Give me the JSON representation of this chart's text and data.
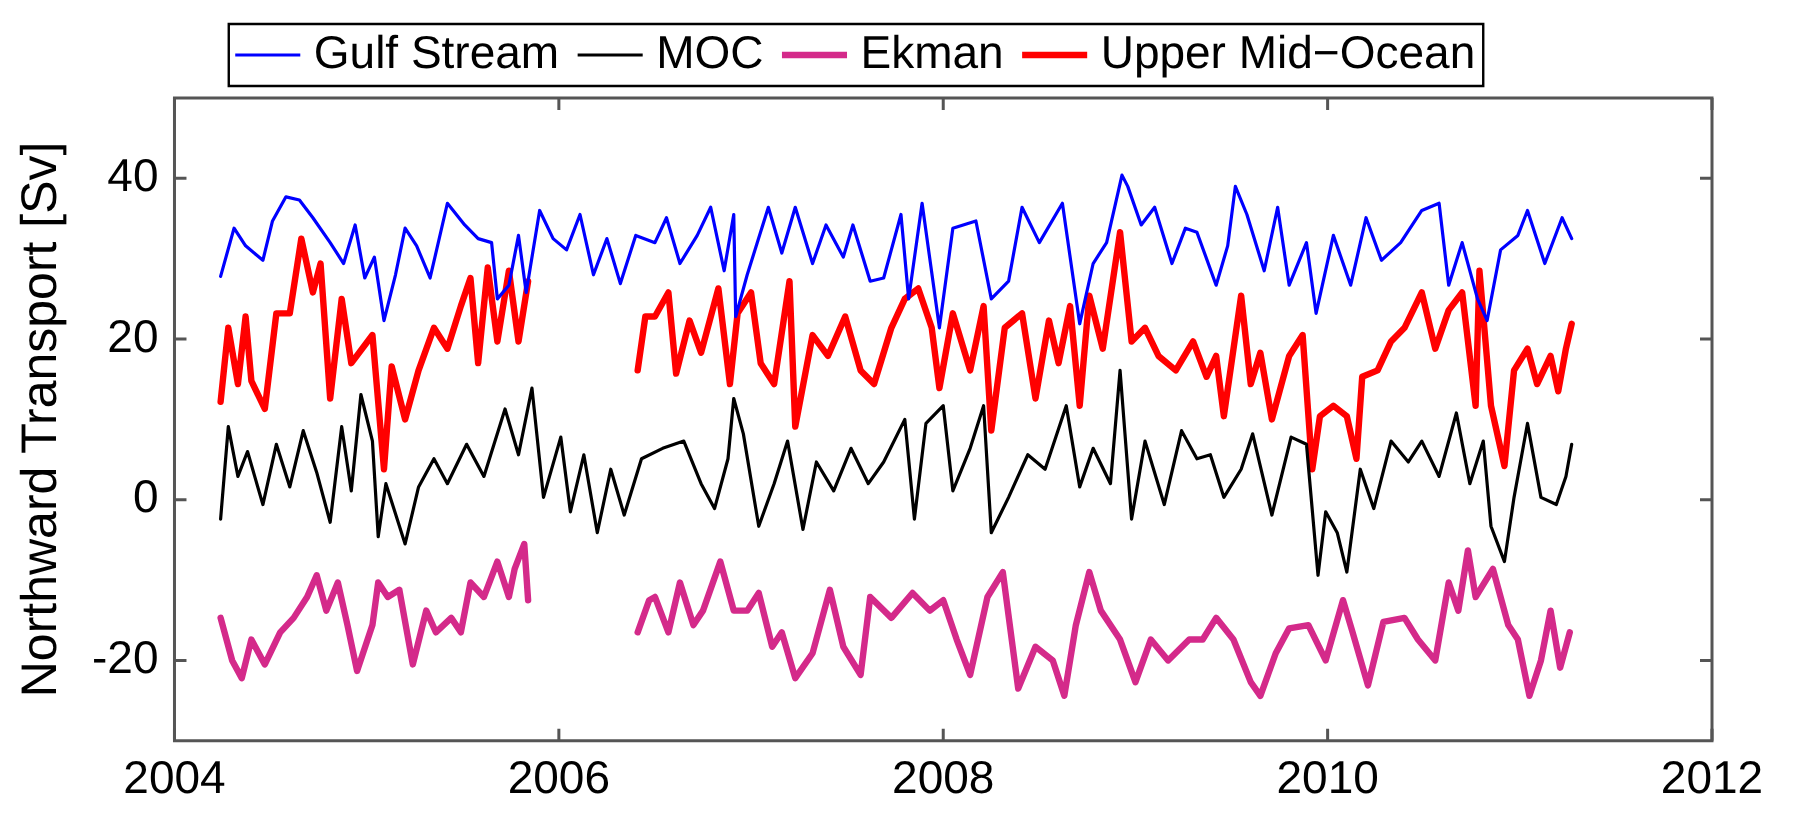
{
  "chart_data": {
    "type": "line",
    "ylabel": "Northward Transport [Sv]",
    "xlim": [
      2004,
      2012
    ],
    "xticks": [
      2004,
      2006,
      2008,
      2010,
      2012
    ],
    "ylim": [
      -30,
      50
    ],
    "yticks": [
      -20,
      0,
      20,
      40
    ],
    "grid": false,
    "legend": "top",
    "series": [
      {
        "name": "Gulf Stream",
        "color": "#0000ff",
        "x": [
          2004.24,
          2004.31,
          2004.37,
          2004.46,
          2004.51,
          2004.58,
          2004.65,
          2004.72,
          2004.81,
          2004.88,
          2004.94,
          2004.99,
          2005.04,
          2005.09,
          2005.15,
          2005.2,
          2005.26,
          2005.33,
          2005.42,
          2005.51,
          2005.58,
          2005.65,
          2005.68,
          2005.74,
          2005.79,
          2005.83,
          2005.9,
          2005.97,
          2006.04,
          2006.11,
          2006.18,
          2006.25,
          2006.32,
          2006.4,
          2006.5,
          2006.56,
          2006.63,
          2006.72,
          2006.79,
          2006.86,
          2006.91,
          2006.92,
          2006.98,
          2007.09,
          2007.16,
          2007.23,
          2007.32,
          2007.39,
          2007.48,
          2007.53,
          2007.62,
          2007.69,
          2007.78,
          2007.82,
          2007.89,
          2007.98,
          2008.05,
          2008.17,
          2008.25,
          2008.34,
          2008.41,
          2008.5,
          2008.62,
          2008.71,
          2008.78,
          2008.85,
          2008.93,
          2008.96,
          2009.03,
          2009.1,
          2009.19,
          2009.26,
          2009.32,
          2009.42,
          2009.48,
          2009.52,
          2009.58,
          2009.67,
          2009.74,
          2009.8,
          2009.89,
          2009.94,
          2010.03,
          2010.12,
          2010.2,
          2010.28,
          2010.38,
          2010.49,
          2010.58,
          2010.63,
          2010.7,
          2010.78,
          2010.83,
          2010.9,
          2010.99,
          2011.04,
          2011.13,
          2011.22,
          2011.27
        ],
        "values": [
          27.8,
          33.8,
          31.6,
          29.8,
          34.7,
          37.7,
          37.3,
          35.1,
          32,
          29.4,
          34.2,
          27.6,
          30.2,
          22.3,
          28,
          33.8,
          31.6,
          27.6,
          36.9,
          34.2,
          32.5,
          32,
          25,
          26.7,
          32.9,
          25.8,
          36,
          32.5,
          31.1,
          35.5,
          28,
          32.5,
          26.9,
          32.9,
          32,
          35.1,
          29.4,
          32.9,
          36.4,
          28.5,
          35.5,
          22.8,
          28,
          36.4,
          30.7,
          36.4,
          29.4,
          34.2,
          30.2,
          34.2,
          27.2,
          27.6,
          35.5,
          25,
          36.9,
          21.4,
          33.8,
          34.7,
          25,
          27.2,
          36.4,
          32,
          36.9,
          21.9,
          29.4,
          32,
          40.4,
          39,
          34.2,
          36.4,
          29.4,
          33.8,
          33.3,
          26.7,
          31.6,
          39,
          35.5,
          28.5,
          36.4,
          26.7,
          32,
          23.2,
          32.9,
          26.7,
          35.1,
          29.8,
          32,
          36,
          36.9,
          26.7,
          32,
          25,
          22.3,
          31.1,
          32.9,
          36,
          29.4,
          35.1,
          32.5
        ]
      },
      {
        "name": "MOC",
        "color": "#000000",
        "x": [
          2004.24,
          2004.28,
          2004.33,
          2004.38,
          2004.46,
          2004.53,
          2004.6,
          2004.67,
          2004.74,
          2004.81,
          2004.87,
          2004.92,
          2004.97,
          2005.03,
          2005.06,
          2005.1,
          2005.2,
          2005.27,
          2005.35,
          2005.42,
          2005.52,
          2005.61,
          2005.72,
          2005.79,
          2005.86,
          2005.92,
          2006.01,
          2006.06,
          2006.13,
          2006.2,
          2006.27,
          2006.34,
          2006.43,
          2006.54,
          2006.65,
          2006.74,
          2006.81,
          2006.88,
          2006.91,
          2006.96,
          2007.04,
          2007.12,
          2007.19,
          2007.27,
          2007.34,
          2007.43,
          2007.52,
          2007.61,
          2007.69,
          2007.8,
          2007.85,
          2007.91,
          2008.0,
          2008.05,
          2008.14,
          2008.21,
          2008.25,
          2008.34,
          2008.44,
          2008.53,
          2008.64,
          2008.71,
          2008.78,
          2008.87,
          2008.92,
          2008.98,
          2009.05,
          2009.15,
          2009.24,
          2009.32,
          2009.39,
          2009.46,
          2009.55,
          2009.61,
          2009.71,
          2009.81,
          2009.89,
          2009.95,
          2009.99,
          2010.05,
          2010.1,
          2010.17,
          2010.24,
          2010.33,
          2010.42,
          2010.49,
          2010.58,
          2010.67,
          2010.74,
          2010.81,
          2010.85,
          2010.92,
          2010.97,
          2011.04,
          2011.11,
          2011.19,
          2011.24,
          2011.27
        ],
        "values": [
          -2.4,
          9.1,
          2.9,
          6,
          -0.6,
          6.9,
          1.6,
          8.6,
          3.4,
          -2.8,
          9.1,
          1.1,
          13.1,
          7.3,
          -4.6,
          2,
          -5.5,
          1.6,
          5.1,
          2,
          6.9,
          2.9,
          11.3,
          5.6,
          13.9,
          0.3,
          7.8,
          -1.5,
          5.6,
          -4.1,
          3.8,
          -1.9,
          5.1,
          6.4,
          7.3,
          2,
          -1.1,
          5.1,
          12.6,
          8.2,
          -3.3,
          2,
          7.3,
          -3.7,
          4.7,
          1.1,
          6.4,
          2,
          4.7,
          10,
          -2.4,
          9.5,
          11.7,
          1.1,
          6.4,
          11.7,
          -4.1,
          0.3,
          5.6,
          3.8,
          11.7,
          1.6,
          6.4,
          2,
          16.1,
          -2.4,
          7.3,
          -0.6,
          8.6,
          5.1,
          5.6,
          0.3,
          3.8,
          8.2,
          -1.9,
          7.8,
          6.9,
          -9.4,
          -1.5,
          -4.1,
          -9,
          3.8,
          -1.1,
          7.3,
          4.7,
          7.3,
          2.9,
          10.8,
          2,
          7.3,
          -3.3,
          -7.7,
          0.3,
          9.5,
          0.3,
          -0.6,
          2.9,
          6.9
        ]
      },
      {
        "name": "Ekman",
        "color": "#d42a8a",
        "x": [
          2004.24,
          2004.3,
          2004.35,
          2004.4,
          2004.47,
          2004.55,
          2004.62,
          2004.69,
          2004.74,
          2004.79,
          2004.85,
          2004.9,
          2004.95,
          2005.03,
          2005.06,
          2005.11,
          2005.17,
          2005.24,
          2005.31,
          2005.36,
          2005.44,
          2005.49,
          2005.54,
          2005.61,
          2005.68,
          2005.74,
          2005.77,
          2005.82,
          2005.84,
          2006.1,
          2006.41,
          2006.47,
          2006.5,
          2006.57,
          2006.63,
          2006.7,
          2006.75,
          2006.84,
          2006.91,
          2006.98,
          2007.04,
          2007.11,
          2007.16,
          2007.23,
          2007.32,
          2007.41,
          2007.48,
          2007.57,
          2007.62,
          2007.73,
          2007.84,
          2007.93,
          2008.0,
          2008.07,
          2008.14,
          2008.23,
          2008.31,
          2008.39,
          2008.48,
          2008.57,
          2008.63,
          2008.69,
          2008.76,
          2008.82,
          2008.92,
          2009.0,
          2009.08,
          2009.17,
          2009.28,
          2009.35,
          2009.42,
          2009.51,
          2009.6,
          2009.65,
          2009.73,
          2009.8,
          2009.9,
          2009.99,
          2010.08,
          2010.13,
          2010.21,
          2010.29,
          2010.4,
          2010.47,
          2010.56,
          2010.63,
          2010.68,
          2010.73,
          2010.77,
          2010.86,
          2010.94,
          2010.99,
          2011.05,
          2011.11,
          2011.16,
          2011.21,
          2011.26
        ],
        "values": [
          -14.7,
          -20,
          -22.2,
          -17.4,
          -20.5,
          -16.5,
          -14.7,
          -12.1,
          -9.4,
          -13.8,
          -10.3,
          -15.6,
          -21.3,
          -15.6,
          -10.3,
          -12.1,
          -11.2,
          -20.5,
          -13.8,
          -16.5,
          -14.7,
          -16.5,
          -10.3,
          -12.1,
          -7.7,
          -12.1,
          -8.6,
          -5.5,
          -12.5,
          null,
          -16.5,
          -12.5,
          -12.1,
          -16.5,
          -10.3,
          -15.6,
          -13.8,
          -7.7,
          -13.8,
          -13.8,
          -11.6,
          -18.3,
          -16.5,
          -22.2,
          -19.1,
          -11.2,
          -18.3,
          -21.8,
          -12.1,
          -14.7,
          -11.6,
          -13.8,
          -12.5,
          -17.4,
          -21.8,
          -12.1,
          -9,
          -23.5,
          -18.3,
          -20,
          -24.4,
          -15.6,
          -9,
          -13.8,
          -17.4,
          -22.7,
          -17.4,
          -20,
          -17.4,
          -17.4,
          -14.7,
          -17.4,
          -22.7,
          -24.4,
          -19.1,
          -16,
          -15.6,
          -20,
          -12.5,
          -16.5,
          -23.1,
          -15.2,
          -14.7,
          -17.4,
          -20,
          -10.3,
          -13.8,
          -6.3,
          -12.1,
          -8.6,
          -15.6,
          -17.4,
          -24.4,
          -20,
          -13.8,
          -20.9,
          -16.5
        ]
      },
      {
        "name": "Upper Mid−Ocean",
        "color": "#ff0000",
        "x": [
          2004.24,
          2004.28,
          2004.33,
          2004.37,
          2004.4,
          2004.47,
          2004.53,
          2004.6,
          2004.66,
          2004.72,
          2004.76,
          2004.81,
          2004.87,
          2004.92,
          2005.03,
          2005.09,
          2005.13,
          2005.2,
          2005.27,
          2005.35,
          2005.42,
          2005.49,
          2005.54,
          2005.58,
          2005.63,
          2005.68,
          2005.74,
          2005.79,
          2005.84,
          2006.1,
          2006.41,
          2006.45,
          2006.5,
          2006.57,
          2006.61,
          2006.68,
          2006.74,
          2006.83,
          2006.89,
          2006.93,
          2007.0,
          2007.05,
          2007.12,
          2007.2,
          2007.23,
          2007.32,
          2007.4,
          2007.49,
          2007.57,
          2007.64,
          2007.73,
          2007.8,
          2007.87,
          2007.94,
          2007.98,
          2008.05,
          2008.14,
          2008.21,
          2008.25,
          2008.32,
          2008.41,
          2008.48,
          2008.55,
          2008.6,
          2008.66,
          2008.71,
          2008.76,
          2008.83,
          2008.92,
          2008.98,
          2009.05,
          2009.12,
          2009.21,
          2009.3,
          2009.37,
          2009.42,
          2009.46,
          2009.55,
          2009.6,
          2009.65,
          2009.71,
          2009.8,
          2009.87,
          2009.92,
          2009.96,
          2010.03,
          2010.1,
          2010.15,
          2010.18,
          2010.26,
          2010.33,
          2010.4,
          2010.49,
          2010.56,
          2010.63,
          2010.7,
          2010.77,
          2010.79,
          2010.85,
          2010.92,
          2010.97,
          2011.04,
          2011.09,
          2011.16,
          2011.2,
          2011.24,
          2011.27
        ],
        "values": [
          12.2,
          21.4,
          14.4,
          22.8,
          14.8,
          11.3,
          23.2,
          23.2,
          32.5,
          25.8,
          29.4,
          12.6,
          25,
          17,
          20.5,
          3.8,
          16.6,
          10,
          16.1,
          21.4,
          18.8,
          24.1,
          27.6,
          17,
          28.9,
          19.7,
          28.5,
          19.7,
          27.2,
          null,
          16.1,
          22.8,
          22.8,
          25.8,
          15.7,
          22.3,
          18.3,
          26.3,
          14.4,
          23.2,
          25.8,
          17,
          14.4,
          27.2,
          9.1,
          20.5,
          17.9,
          22.8,
          16.1,
          14.4,
          21.4,
          25,
          26.3,
          21.4,
          13.9,
          23.2,
          16.1,
          24.1,
          8.6,
          21.4,
          23.2,
          12.6,
          22.3,
          17,
          24.1,
          11.7,
          25.4,
          18.8,
          33.3,
          19.7,
          21.4,
          17.9,
          16.1,
          19.7,
          15.3,
          17.9,
          10.4,
          25.4,
          14.4,
          18.3,
          10,
          17.9,
          20.5,
          3.8,
          10.4,
          11.7,
          10.4,
          5.1,
          15.3,
          16.1,
          19.7,
          21.4,
          25.8,
          18.8,
          23.6,
          25.8,
          11.7,
          28.5,
          11.7,
          4.2,
          16.1,
          18.8,
          14.4,
          17.9,
          13.5,
          18.8,
          21.9
        ]
      }
    ]
  }
}
